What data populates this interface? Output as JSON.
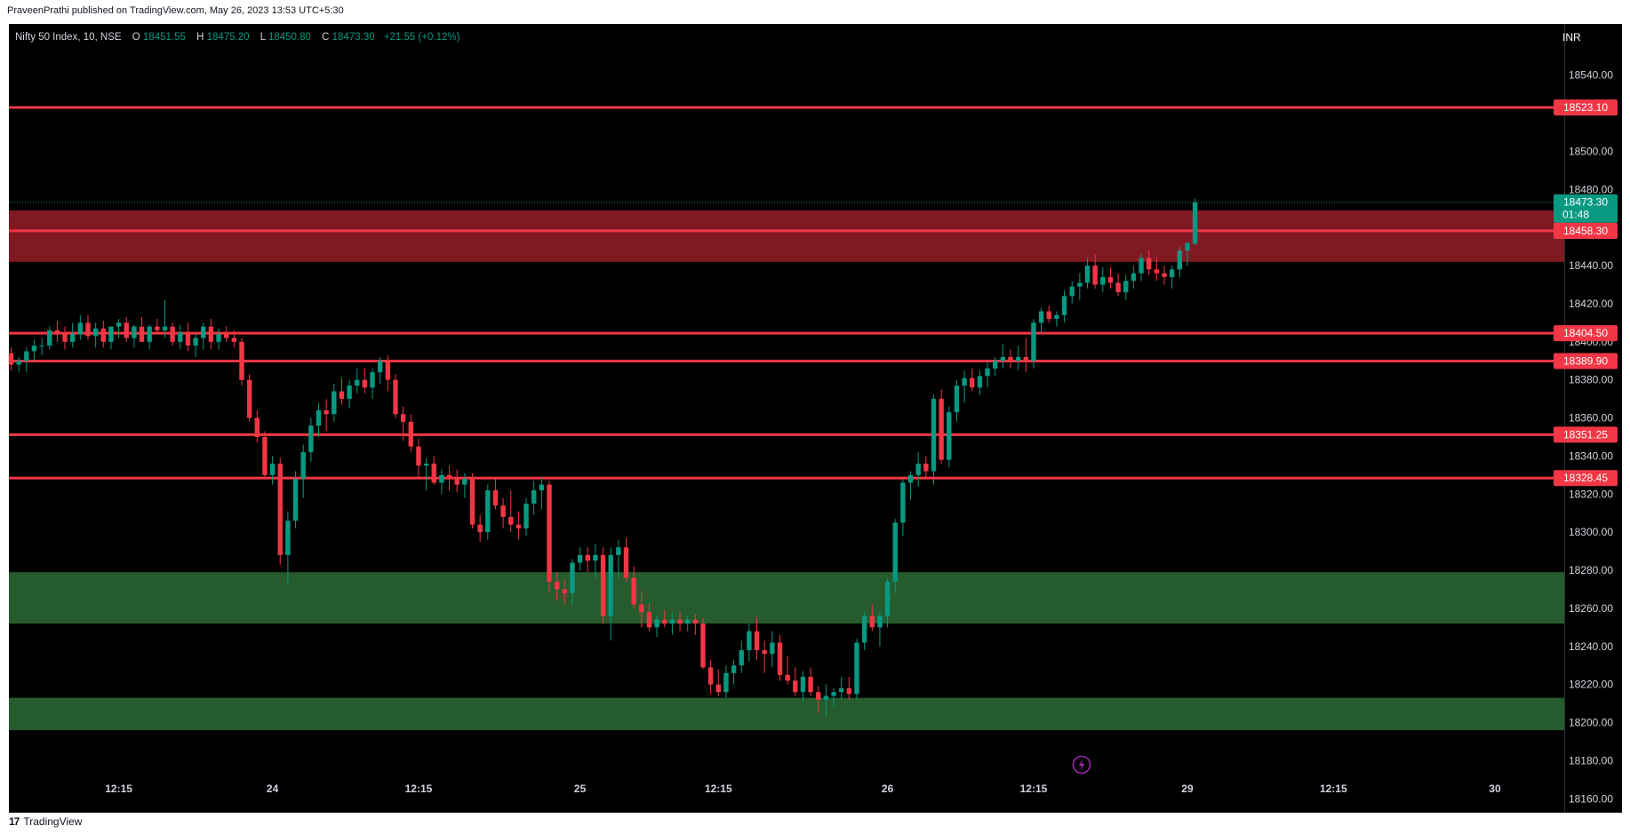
{
  "publish_line": "PraveenPrathi published on TradingView.com, May 26, 2023 13:53 UTC+5:30",
  "footer": {
    "brand": "TradingView",
    "logo_icon": "tradingview-logo-icon"
  },
  "legend": {
    "symbol": "Nifty 50 Index, 10, NSE",
    "o_label": "O",
    "o": "18451.55",
    "h_label": "H",
    "h": "18475.20",
    "l_label": "L",
    "l": "18450.80",
    "c_label": "C",
    "c": "18473.30",
    "change": "+21.55 (+0.12%)"
  },
  "colors": {
    "up": "#089981",
    "down": "#f23645",
    "level": "#f23645",
    "supply_zone": "#801922",
    "demand_zone": "#255b2d",
    "price_tag": "#089981"
  },
  "chart_data": {
    "type": "candlestick",
    "title": "Nifty 50 Index, 10, NSE",
    "currency": "INR",
    "ylim": [
      18148,
      18552
    ],
    "y_ticks": [
      18540,
      18500,
      18480,
      18440,
      18420,
      18400,
      18380,
      18360,
      18340,
      18320,
      18300,
      18280,
      18260,
      18240,
      18220,
      18200,
      18180,
      18160
    ],
    "x_ticks": [
      {
        "label": "12:15",
        "bar": 14
      },
      {
        "label": "24",
        "bar": 34
      },
      {
        "label": "12:15",
        "bar": 53
      },
      {
        "label": "25",
        "bar": 74
      },
      {
        "label": "12:15",
        "bar": 92
      },
      {
        "label": "26",
        "bar": 114
      },
      {
        "label": "12:15",
        "bar": 133
      },
      {
        "label": "29",
        "bar": 153
      },
      {
        "label": "12:15",
        "bar": 172
      },
      {
        "label": "30",
        "bar": 193
      }
    ],
    "horizontal_levels": [
      18523.1,
      18458.3,
      18404.5,
      18389.9,
      18351.25,
      18328.45
    ],
    "zones": [
      {
        "kind": "supply",
        "from": 18442,
        "to": 18469
      },
      {
        "kind": "demand",
        "from": 18252,
        "to": 18279
      },
      {
        "kind": "demand",
        "from": 18196,
        "to": 18213
      }
    ],
    "last_price": "18473.30",
    "countdown": "01:48",
    "replay_icon": "lightning-icon",
    "candles": [
      [
        18394,
        18397,
        18385,
        18388
      ],
      [
        18388,
        18392,
        18384,
        18390
      ],
      [
        18390,
        18397,
        18384,
        18395
      ],
      [
        18395,
        18401,
        18390,
        18398
      ],
      [
        18398,
        18402,
        18393,
        18398
      ],
      [
        18398,
        18408,
        18396,
        18406
      ],
      [
        18406,
        18411,
        18400,
        18404
      ],
      [
        18404,
        18408,
        18396,
        18400
      ],
      [
        18400,
        18410,
        18397,
        18404
      ],
      [
        18404,
        18414,
        18401,
        18410
      ],
      [
        18410,
        18414,
        18401,
        18403
      ],
      [
        18403,
        18410,
        18397,
        18407
      ],
      [
        18407,
        18411,
        18397,
        18400
      ],
      [
        18400,
        18406,
        18396,
        18408
      ],
      [
        18408,
        18412,
        18402,
        18410
      ],
      [
        18410,
        18413,
        18400,
        18402
      ],
      [
        18402,
        18409,
        18397,
        18408
      ],
      [
        18408,
        18413,
        18400,
        18400
      ],
      [
        18400,
        18409,
        18396,
        18408
      ],
      [
        18408,
        18412,
        18404,
        18406
      ],
      [
        18406,
        18422,
        18402,
        18408
      ],
      [
        18408,
        18410,
        18398,
        18400
      ],
      [
        18400,
        18409,
        18396,
        18405
      ],
      [
        18405,
        18410,
        18395,
        18398
      ],
      [
        18398,
        18404,
        18392,
        18402
      ],
      [
        18402,
        18410,
        18396,
        18408
      ],
      [
        18408,
        18412,
        18396,
        18400
      ],
      [
        18400,
        18407,
        18396,
        18404
      ],
      [
        18404,
        18408,
        18400,
        18402
      ],
      [
        18402,
        18406,
        18397,
        18400
      ],
      [
        18400,
        18402,
        18377,
        18380
      ],
      [
        18380,
        18383,
        18358,
        18360
      ],
      [
        18360,
        18364,
        18347,
        18350
      ],
      [
        18350,
        18353,
        18328,
        18330
      ],
      [
        18330,
        18340,
        18325,
        18336
      ],
      [
        18336,
        18339,
        18283,
        18288
      ],
      [
        18288,
        18311,
        18272,
        18306
      ],
      [
        18306,
        18332,
        18302,
        18328
      ],
      [
        18328,
        18346,
        18318,
        18342
      ],
      [
        18342,
        18360,
        18337,
        18356
      ],
      [
        18356,
        18368,
        18350,
        18364
      ],
      [
        18364,
        18370,
        18353,
        18362
      ],
      [
        18362,
        18378,
        18358,
        18374
      ],
      [
        18374,
        18381,
        18367,
        18370
      ],
      [
        18370,
        18380,
        18365,
        18377
      ],
      [
        18377,
        18386,
        18373,
        18380
      ],
      [
        18380,
        18386,
        18373,
        18376
      ],
      [
        18376,
        18386,
        18370,
        18384
      ],
      [
        18384,
        18392,
        18378,
        18390
      ],
      [
        18390,
        18393,
        18374,
        18380
      ],
      [
        18380,
        18383,
        18360,
        18362
      ],
      [
        18362,
        18366,
        18348,
        18358
      ],
      [
        18358,
        18362,
        18342,
        18345
      ],
      [
        18345,
        18349,
        18328,
        18335
      ],
      [
        18335,
        18339,
        18322,
        18336
      ],
      [
        18336,
        18340,
        18325,
        18326
      ],
      [
        18326,
        18333,
        18320,
        18330
      ],
      [
        18330,
        18335,
        18322,
        18328
      ],
      [
        18328,
        18333,
        18321,
        18325
      ],
      [
        18325,
        18331,
        18318,
        18328
      ],
      [
        18328,
        18331,
        18302,
        18304
      ],
      [
        18304,
        18309,
        18295,
        18300
      ],
      [
        18300,
        18325,
        18296,
        18322
      ],
      [
        18322,
        18329,
        18312,
        18314
      ],
      [
        18314,
        18318,
        18302,
        18308
      ],
      [
        18308,
        18322,
        18300,
        18304
      ],
      [
        18304,
        18311,
        18296,
        18302
      ],
      [
        18302,
        18318,
        18298,
        18315
      ],
      [
        18315,
        18327,
        18309,
        18322
      ],
      [
        18322,
        18329,
        18312,
        18325
      ],
      [
        18325,
        18327,
        18268,
        18274
      ],
      [
        18274,
        18279,
        18264,
        18270
      ],
      [
        18270,
        18275,
        18262,
        18268
      ],
      [
        18268,
        18286,
        18262,
        18284
      ],
      [
        18284,
        18292,
        18280,
        18288
      ],
      [
        18288,
        18292,
        18279,
        18285
      ],
      [
        18285,
        18294,
        18276,
        18288
      ],
      [
        18288,
        18292,
        18252,
        18256
      ],
      [
        18256,
        18292,
        18243,
        18288
      ],
      [
        18288,
        18296,
        18276,
        18292
      ],
      [
        18292,
        18297,
        18274,
        18276
      ],
      [
        18276,
        18282,
        18260,
        18262
      ],
      [
        18262,
        18269,
        18250,
        18258
      ],
      [
        18258,
        18263,
        18248,
        18250
      ],
      [
        18250,
        18256,
        18245,
        18254
      ],
      [
        18254,
        18259,
        18250,
        18252
      ],
      [
        18252,
        18257,
        18246,
        18254
      ],
      [
        18254,
        18258,
        18248,
        18252
      ],
      [
        18252,
        18256,
        18248,
        18254
      ],
      [
        18254,
        18257,
        18246,
        18252
      ],
      [
        18252,
        18255,
        18228,
        18229
      ],
      [
        18229,
        18233,
        18215,
        18220
      ],
      [
        18220,
        18228,
        18214,
        18216
      ],
      [
        18216,
        18230,
        18213,
        18226
      ],
      [
        18226,
        18233,
        18220,
        18230
      ],
      [
        18230,
        18243,
        18226,
        18238
      ],
      [
        18238,
        18252,
        18232,
        18248
      ],
      [
        18248,
        18255,
        18233,
        18238
      ],
      [
        18238,
        18243,
        18226,
        18236
      ],
      [
        18236,
        18248,
        18229,
        18242
      ],
      [
        18242,
        18246,
        18222,
        18225
      ],
      [
        18225,
        18235,
        18220,
        18222
      ],
      [
        18222,
        18229,
        18214,
        18216
      ],
      [
        18216,
        18227,
        18211,
        18224
      ],
      [
        18224,
        18229,
        18214,
        18216
      ],
      [
        18216,
        18219,
        18205,
        18212
      ],
      [
        18212,
        18220,
        18203,
        18214
      ],
      [
        18214,
        18218,
        18208,
        18216
      ],
      [
        18216,
        18224,
        18212,
        18218
      ],
      [
        18218,
        18224,
        18212,
        18215
      ],
      [
        18215,
        18244,
        18212,
        18242
      ],
      [
        18242,
        18258,
        18238,
        18256
      ],
      [
        18256,
        18262,
        18248,
        18250
      ],
      [
        18250,
        18258,
        18240,
        18256
      ],
      [
        18256,
        18276,
        18250,
        18274
      ],
      [
        18274,
        18307,
        18268,
        18305
      ],
      [
        18305,
        18328,
        18298,
        18326
      ],
      [
        18326,
        18332,
        18317,
        18330
      ],
      [
        18330,
        18342,
        18324,
        18336
      ],
      [
        18336,
        18340,
        18328,
        18332
      ],
      [
        18332,
        18372,
        18325,
        18370
      ],
      [
        18370,
        18375,
        18336,
        18338
      ],
      [
        18338,
        18366,
        18334,
        18363
      ],
      [
        18363,
        18380,
        18358,
        18377
      ],
      [
        18377,
        18385,
        18368,
        18381
      ],
      [
        18381,
        18386,
        18374,
        18376
      ],
      [
        18376,
        18385,
        18372,
        18382
      ],
      [
        18382,
        18389,
        18376,
        18386
      ],
      [
        18386,
        18392,
        18382,
        18390
      ],
      [
        18390,
        18399,
        18386,
        18392
      ],
      [
        18392,
        18396,
        18386,
        18390
      ],
      [
        18390,
        18398,
        18385,
        18392
      ],
      [
        18392,
        18402,
        18384,
        18390
      ],
      [
        18390,
        18412,
        18386,
        18410
      ],
      [
        18410,
        18418,
        18404,
        18416
      ],
      [
        18416,
        18419,
        18410,
        18412
      ],
      [
        18412,
        18416,
        18408,
        18414
      ],
      [
        18414,
        18427,
        18410,
        18424
      ],
      [
        18424,
        18432,
        18420,
        18429
      ],
      [
        18429,
        18436,
        18422,
        18431
      ],
      [
        18431,
        18444,
        18428,
        18440
      ],
      [
        18440,
        18446,
        18428,
        18430
      ],
      [
        18430,
        18439,
        18426,
        18434
      ],
      [
        18434,
        18439,
        18428,
        18431
      ],
      [
        18431,
        18436,
        18424,
        18426
      ],
      [
        18426,
        18435,
        18422,
        18432
      ],
      [
        18432,
        18440,
        18428,
        18436
      ],
      [
        18436,
        18446,
        18432,
        18444
      ],
      [
        18444,
        18448,
        18435,
        18438
      ],
      [
        18438,
        18444,
        18432,
        18436
      ],
      [
        18436,
        18440,
        18430,
        18434
      ],
      [
        18434,
        18440,
        18428,
        18438
      ],
      [
        18438,
        18450,
        18434,
        18448
      ],
      [
        18448,
        18452,
        18440,
        18452
      ],
      [
        18451.55,
        18475.2,
        18450.8,
        18473.3
      ]
    ]
  }
}
